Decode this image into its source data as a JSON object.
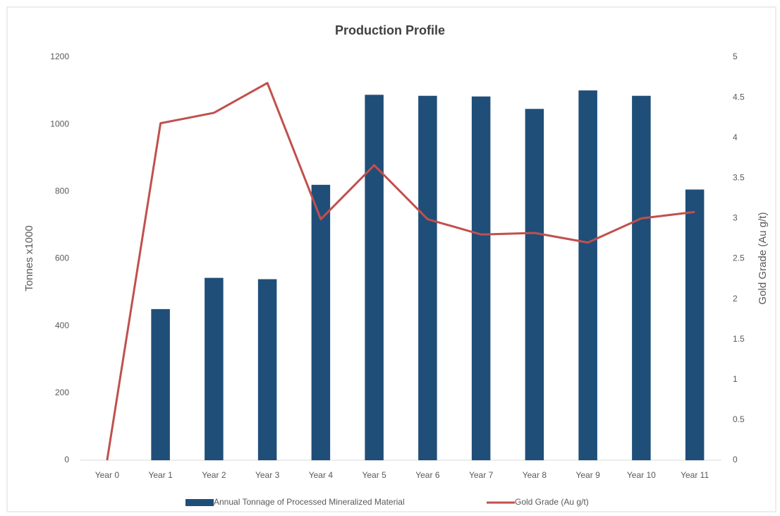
{
  "chart_data": {
    "type": "bar_line",
    "title": "Production Profile",
    "y_label": "Tonnes  x1000",
    "y2_label": "Gold Grade (Au g/t)",
    "categories": [
      "Year 0",
      "Year 1",
      "Year 2",
      "Year 3",
      "Year 4",
      "Year 5",
      "Year 6",
      "Year 7",
      "Year 8",
      "Year 9",
      "Year 10",
      "Year 11"
    ],
    "series": [
      {
        "name": "Annual Tonnage of Processed Mineralized Material",
        "type": "bar",
        "color": "#1f4e79",
        "values": [
          0,
          450,
          543,
          539,
          820,
          1088,
          1085,
          1083,
          1046,
          1101,
          1085,
          806
        ]
      },
      {
        "name": "Gold Grade (Au g/t)",
        "type": "line",
        "axis": "y2",
        "color": "#c0504d",
        "values": [
          0,
          4.18,
          4.31,
          4.68,
          2.99,
          3.66,
          2.99,
          2.8,
          2.82,
          2.7,
          3.0,
          3.08
        ]
      }
    ],
    "ylim": [
      0,
      1200
    ],
    "yticks": [
      0,
      200,
      400,
      600,
      800,
      1000,
      1200
    ],
    "y2lim": [
      0,
      5
    ],
    "y2ticks": [
      0,
      0.5,
      1,
      1.5,
      2,
      2.5,
      3,
      3.5,
      4,
      4.5,
      5
    ],
    "grid": false,
    "legend": "bottom"
  }
}
